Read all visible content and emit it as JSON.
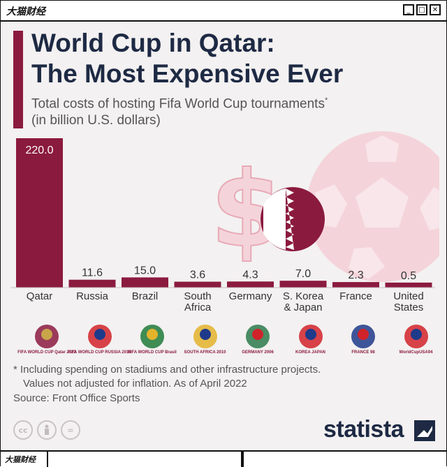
{
  "window": {
    "brand": "大猫财经",
    "btn_minimize": "_",
    "btn_maximize": "□",
    "btn_close": "✕"
  },
  "header": {
    "title_line1": "World Cup in Qatar:",
    "title_line2": "The Most Expensive Ever",
    "subtitle_line1": "Total costs of hosting Fifa World Cup tournaments",
    "subtitle_marker": "*",
    "subtitle_line2": "(in billion U.S. dollars)"
  },
  "chart_data": {
    "type": "bar",
    "title": "World Cup in Qatar: The Most Expensive Ever",
    "subtitle": "Total costs of hosting Fifa World Cup tournaments* (in billion U.S. dollars)",
    "categories": [
      "Qatar",
      "Russia",
      "Brazil",
      "South Africa",
      "Germany",
      "S. Korea & Japan",
      "France",
      "United States"
    ],
    "category_lines": [
      [
        "Qatar"
      ],
      [
        "Russia"
      ],
      [
        "Brazil"
      ],
      [
        "South",
        "Africa"
      ],
      [
        "Germany"
      ],
      [
        "S. Korea",
        "& Japan"
      ],
      [
        "France"
      ],
      [
        "United",
        "States"
      ]
    ],
    "values": [
      220.0,
      11.6,
      15.0,
      3.6,
      4.3,
      7.0,
      2.3,
      0.5
    ],
    "value_labels": [
      "220.0",
      "11.6",
      "15.0",
      "3.6",
      "4.3",
      "7.0",
      "2.3",
      "0.5"
    ],
    "ylim": [
      0,
      220
    ],
    "grid": false,
    "bar_color": "#8b1a3f"
  },
  "logos": [
    {
      "caption": "FIFA WORLD CUP Qatar 2022",
      "icon": "trophy-emblem-icon"
    },
    {
      "caption": "FIFA WORLD CUP RUSSIA 2018",
      "icon": "russia-emblem-icon"
    },
    {
      "caption": "FIFA WORLD CUP Brasil",
      "icon": "brazil-emblem-icon"
    },
    {
      "caption": "SOUTH AFRICA 2010",
      "icon": "south-africa-emblem-icon"
    },
    {
      "caption": "GERMANY 2006",
      "icon": "germany-emblem-icon"
    },
    {
      "caption": "KOREA JAPAN",
      "icon": "korea-japan-emblem-icon"
    },
    {
      "caption": "FRANCE 98",
      "icon": "france-emblem-icon"
    },
    {
      "caption": "WorldCupUSA94",
      "icon": "usa-emblem-icon"
    }
  ],
  "footer": {
    "footnote_line1": "* Including spending on stadiums and other infrastructure projects.",
    "footnote_line2": "Values not adjusted for inflation. As of April 2022",
    "source": "Source: Front Office Sports",
    "cc_label": "cc",
    "eq_label": "=",
    "brand": "statista",
    "bottom_brand": "大猫财经"
  },
  "colors": {
    "accent": "#8b1a3f",
    "title": "#1e2a44",
    "text": "#555555",
    "decor_pink": "#f4d4da"
  }
}
